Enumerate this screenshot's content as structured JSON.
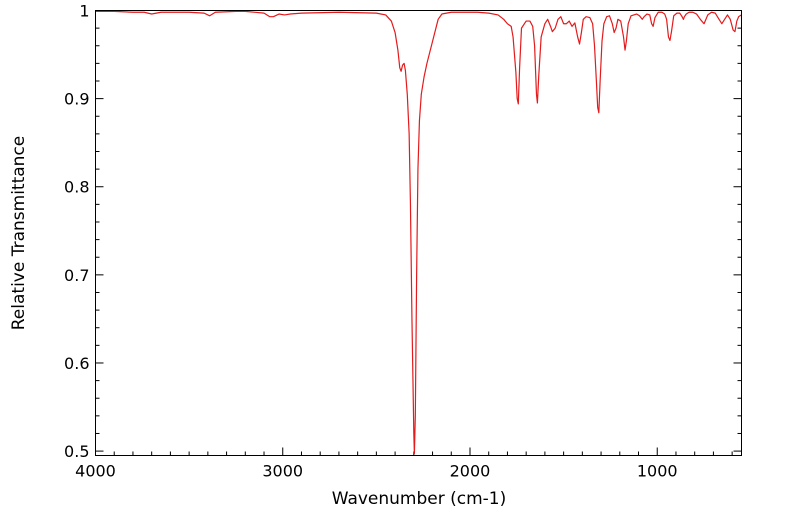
{
  "chart_data": {
    "type": "line",
    "title": "",
    "xlabel": "Wavenumber (cm-1)",
    "ylabel": "Relative Transmittance",
    "xlim": [
      4000,
      550
    ],
    "ylim": [
      0.495,
      1.0
    ],
    "x_reversed": true,
    "x_ticks": [
      4000,
      3000,
      2000,
      1000
    ],
    "x_tick_labels": [
      "4000",
      "3000",
      "2000",
      "1000"
    ],
    "y_ticks": [
      0.5,
      0.6,
      0.7,
      0.8,
      0.9,
      1.0
    ],
    "y_tick_labels": [
      "0.5",
      "0.6",
      "0.7",
      "0.8",
      "0.9",
      "1"
    ],
    "grid": false,
    "legend": "none",
    "series": [
      {
        "color": "#e41a1c",
        "points": [
          [
            4000,
            0.999
          ],
          [
            3900,
            0.999
          ],
          [
            3800,
            0.998
          ],
          [
            3740,
            0.998
          ],
          [
            3700,
            0.996
          ],
          [
            3650,
            0.998
          ],
          [
            3500,
            0.998
          ],
          [
            3420,
            0.997
          ],
          [
            3390,
            0.994
          ],
          [
            3360,
            0.998
          ],
          [
            3250,
            0.999
          ],
          [
            3200,
            0.999
          ],
          [
            3100,
            0.997
          ],
          [
            3070,
            0.993
          ],
          [
            3050,
            0.993
          ],
          [
            3020,
            0.996
          ],
          [
            2990,
            0.995
          ],
          [
            2960,
            0.996
          ],
          [
            2900,
            0.997
          ],
          [
            2700,
            0.998
          ],
          [
            2500,
            0.997
          ],
          [
            2450,
            0.995
          ],
          [
            2420,
            0.988
          ],
          [
            2400,
            0.975
          ],
          [
            2385,
            0.955
          ],
          [
            2375,
            0.935
          ],
          [
            2368,
            0.931
          ],
          [
            2360,
            0.938
          ],
          [
            2352,
            0.94
          ],
          [
            2345,
            0.932
          ],
          [
            2335,
            0.905
          ],
          [
            2325,
            0.86
          ],
          [
            2318,
            0.78
          ],
          [
            2310,
            0.65
          ],
          [
            2300,
            0.52
          ],
          [
            2297,
            0.497
          ],
          [
            2292,
            0.54
          ],
          [
            2285,
            0.7
          ],
          [
            2278,
            0.82
          ],
          [
            2270,
            0.875
          ],
          [
            2260,
            0.905
          ],
          [
            2245,
            0.925
          ],
          [
            2230,
            0.94
          ],
          [
            2200,
            0.965
          ],
          [
            2170,
            0.99
          ],
          [
            2150,
            0.996
          ],
          [
            2100,
            0.998
          ],
          [
            1960,
            0.998
          ],
          [
            1900,
            0.997
          ],
          [
            1850,
            0.995
          ],
          [
            1820,
            0.99
          ],
          [
            1800,
            0.985
          ],
          [
            1780,
            0.982
          ],
          [
            1770,
            0.97
          ],
          [
            1755,
            0.93
          ],
          [
            1748,
            0.9
          ],
          [
            1742,
            0.894
          ],
          [
            1735,
            0.935
          ],
          [
            1725,
            0.98
          ],
          [
            1700,
            0.988
          ],
          [
            1680,
            0.988
          ],
          [
            1665,
            0.982
          ],
          [
            1655,
            0.96
          ],
          [
            1645,
            0.905
          ],
          [
            1640,
            0.895
          ],
          [
            1633,
            0.925
          ],
          [
            1620,
            0.97
          ],
          [
            1600,
            0.985
          ],
          [
            1585,
            0.99
          ],
          [
            1570,
            0.982
          ],
          [
            1560,
            0.976
          ],
          [
            1545,
            0.98
          ],
          [
            1530,
            0.99
          ],
          [
            1515,
            0.993
          ],
          [
            1500,
            0.985
          ],
          [
            1485,
            0.985
          ],
          [
            1470,
            0.988
          ],
          [
            1455,
            0.982
          ],
          [
            1440,
            0.986
          ],
          [
            1425,
            0.97
          ],
          [
            1415,
            0.962
          ],
          [
            1405,
            0.975
          ],
          [
            1395,
            0.99
          ],
          [
            1380,
            0.993
          ],
          [
            1360,
            0.992
          ],
          [
            1345,
            0.985
          ],
          [
            1335,
            0.96
          ],
          [
            1325,
            0.92
          ],
          [
            1318,
            0.89
          ],
          [
            1312,
            0.884
          ],
          [
            1305,
            0.92
          ],
          [
            1295,
            0.965
          ],
          [
            1285,
            0.985
          ],
          [
            1270,
            0.993
          ],
          [
            1255,
            0.994
          ],
          [
            1240,
            0.985
          ],
          [
            1230,
            0.975
          ],
          [
            1220,
            0.98
          ],
          [
            1210,
            0.99
          ],
          [
            1195,
            0.988
          ],
          [
            1180,
            0.97
          ],
          [
            1172,
            0.955
          ],
          [
            1165,
            0.965
          ],
          [
            1155,
            0.985
          ],
          [
            1140,
            0.994
          ],
          [
            1110,
            0.996
          ],
          [
            1095,
            0.994
          ],
          [
            1080,
            0.99
          ],
          [
            1070,
            0.993
          ],
          [
            1055,
            0.996
          ],
          [
            1040,
            0.995
          ],
          [
            1030,
            0.985
          ],
          [
            1022,
            0.982
          ],
          [
            1012,
            0.992
          ],
          [
            995,
            0.998
          ],
          [
            975,
            0.998
          ],
          [
            960,
            0.996
          ],
          [
            950,
            0.99
          ],
          [
            940,
            0.97
          ],
          [
            932,
            0.966
          ],
          [
            924,
            0.976
          ],
          [
            912,
            0.994
          ],
          [
            895,
            0.997
          ],
          [
            880,
            0.997
          ],
          [
            870,
            0.994
          ],
          [
            860,
            0.99
          ],
          [
            855,
            0.993
          ],
          [
            845,
            0.996
          ],
          [
            830,
            0.998
          ],
          [
            810,
            0.998
          ],
          [
            790,
            0.996
          ],
          [
            770,
            0.99
          ],
          [
            750,
            0.985
          ],
          [
            730,
            0.995
          ],
          [
            710,
            0.998
          ],
          [
            690,
            0.997
          ],
          [
            670,
            0.99
          ],
          [
            655,
            0.985
          ],
          [
            640,
            0.99
          ],
          [
            625,
            0.995
          ],
          [
            610,
            0.99
          ],
          [
            595,
            0.978
          ],
          [
            585,
            0.976
          ],
          [
            575,
            0.988
          ],
          [
            565,
            0.993
          ],
          [
            550,
            0.995
          ]
        ]
      }
    ]
  }
}
